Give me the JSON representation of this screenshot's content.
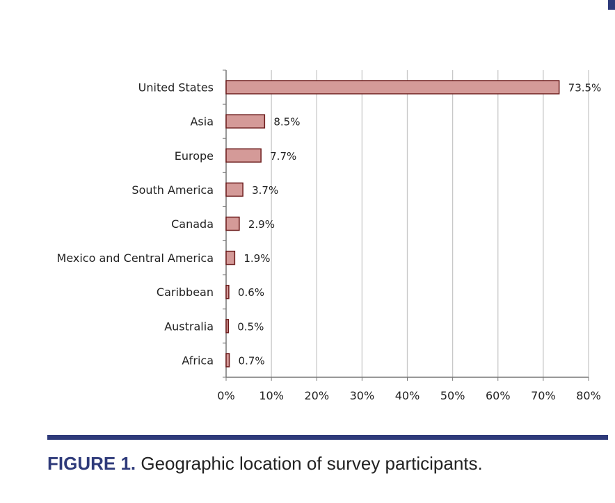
{
  "colors": {
    "bar_fill": "#d49a98",
    "bar_stroke": "#6b1a1a",
    "grid": "#c8c8c8",
    "axis": "#777777",
    "accent": "#2e3a7a"
  },
  "chart_data": {
    "type": "bar",
    "orientation": "horizontal",
    "categories": [
      "United States",
      "Asia",
      "Europe",
      "South America",
      "Canada",
      "Mexico and Central America",
      "Caribbean",
      "Australia",
      "Africa"
    ],
    "values": [
      73.5,
      8.5,
      7.7,
      3.7,
      2.9,
      1.9,
      0.6,
      0.5,
      0.7
    ],
    "data_labels": [
      "73.5%",
      "8.5%",
      "7.7%",
      "3.7%",
      "2.9%",
      "1.9%",
      "0.6%",
      "0.5%",
      "0.7%"
    ],
    "xlim": [
      0,
      80
    ],
    "xticks": [
      0,
      10,
      20,
      30,
      40,
      50,
      60,
      70,
      80
    ],
    "xtick_labels": [
      "0%",
      "10%",
      "20%",
      "30%",
      "40%",
      "50%",
      "60%",
      "70%",
      "80%"
    ],
    "grid": true,
    "legend": "none"
  },
  "figure": {
    "label": "FIGURE 1.",
    "caption": " Geographic location of survey participants."
  }
}
